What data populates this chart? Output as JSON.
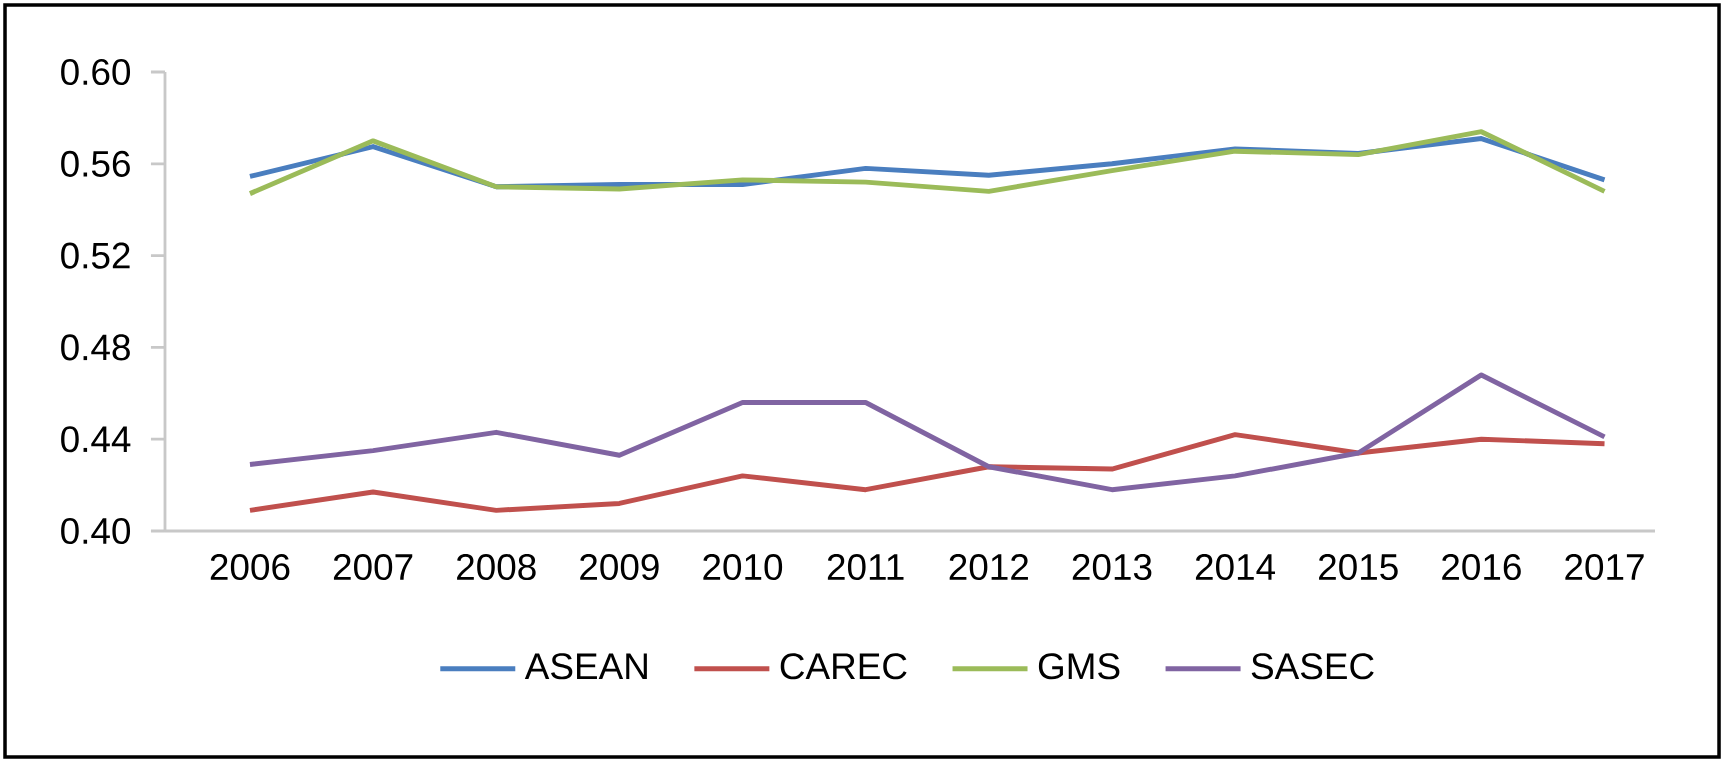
{
  "chart_data": {
    "type": "line",
    "categories": [
      "2006",
      "2007",
      "2008",
      "2009",
      "2010",
      "2011",
      "2012",
      "2013",
      "2014",
      "2015",
      "2016",
      "2017"
    ],
    "series": [
      {
        "name": "ASEAN",
        "color": "#4a7ebf",
        "values": [
          0.5545,
          0.5675,
          0.55,
          0.551,
          0.551,
          0.558,
          0.555,
          0.56,
          0.5665,
          0.5645,
          0.571,
          0.553
        ]
      },
      {
        "name": "CAREC",
        "color": "#c0504d",
        "values": [
          0.409,
          0.417,
          0.409,
          0.412,
          0.424,
          0.418,
          0.428,
          0.427,
          0.442,
          0.434,
          0.44,
          0.438
        ]
      },
      {
        "name": "GMS",
        "color": "#9bbb59",
        "values": [
          0.547,
          0.57,
          0.55,
          0.549,
          0.553,
          0.552,
          0.548,
          0.557,
          0.5655,
          0.564,
          0.574,
          0.548
        ]
      },
      {
        "name": "SASEC",
        "color": "#8064a2",
        "values": [
          0.429,
          0.435,
          0.443,
          0.433,
          0.456,
          0.456,
          0.428,
          0.418,
          0.424,
          0.434,
          0.468,
          0.441
        ]
      }
    ],
    "ylim": [
      0.4,
      0.6
    ],
    "yticks": [
      {
        "value": 0.4,
        "label": "0.40"
      },
      {
        "value": 0.44,
        "label": "0.44"
      },
      {
        "value": 0.48,
        "label": "0.48"
      },
      {
        "value": 0.52,
        "label": "0.52"
      },
      {
        "value": 0.56,
        "label": "0.56"
      },
      {
        "value": 0.6,
        "label": "0.60"
      }
    ],
    "grid": false,
    "legend": "bottom",
    "marker": "none",
    "line_style": "solid"
  }
}
